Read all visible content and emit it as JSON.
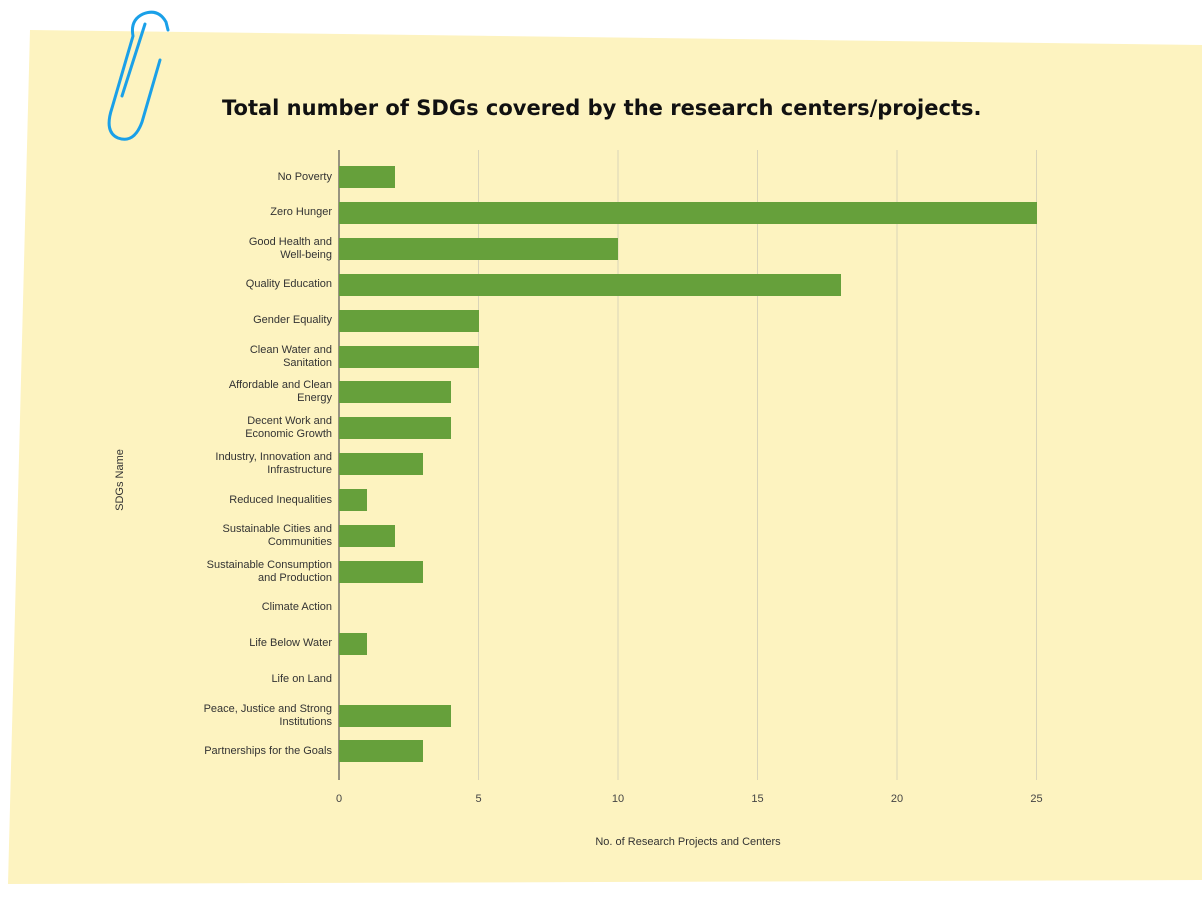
{
  "chart_data": {
    "type": "bar",
    "orientation": "horizontal",
    "title": "Total number of SDGs covered by the research centers/projects.",
    "xlabel": "No. of Research Projects and Centers",
    "ylabel": "SDGs Name",
    "xlim": [
      0,
      25
    ],
    "xticks": [
      0,
      5,
      10,
      15,
      20,
      25
    ],
    "grid": true,
    "categories": [
      "No Poverty",
      "Zero Hunger",
      "Good Health and\nWell-being",
      "Quality Education",
      "Gender Equality",
      "Clean Water and\nSanitation",
      "Affordable and Clean\nEnergy",
      "Decent Work and\nEconomic Growth",
      "Industry, Innovation and\nInfrastructure",
      "Reduced Inequalities",
      "Sustainable Cities and\nCommunities",
      "Sustainable Consumption\nand Production",
      "Climate Action",
      "Life Below Water",
      "Life on Land",
      "Peace, Justice and Strong\nInstitutions",
      "Partnerships for the Goals"
    ],
    "values": [
      2,
      25,
      10,
      18,
      5,
      5,
      4,
      4,
      3,
      1,
      2,
      3,
      0,
      1,
      0,
      4,
      3
    ],
    "colors": {
      "bar": "#66a03b",
      "paper": "#fdf3c0",
      "grid": "#d9d4b8",
      "clip": "#1aa0e8"
    }
  }
}
